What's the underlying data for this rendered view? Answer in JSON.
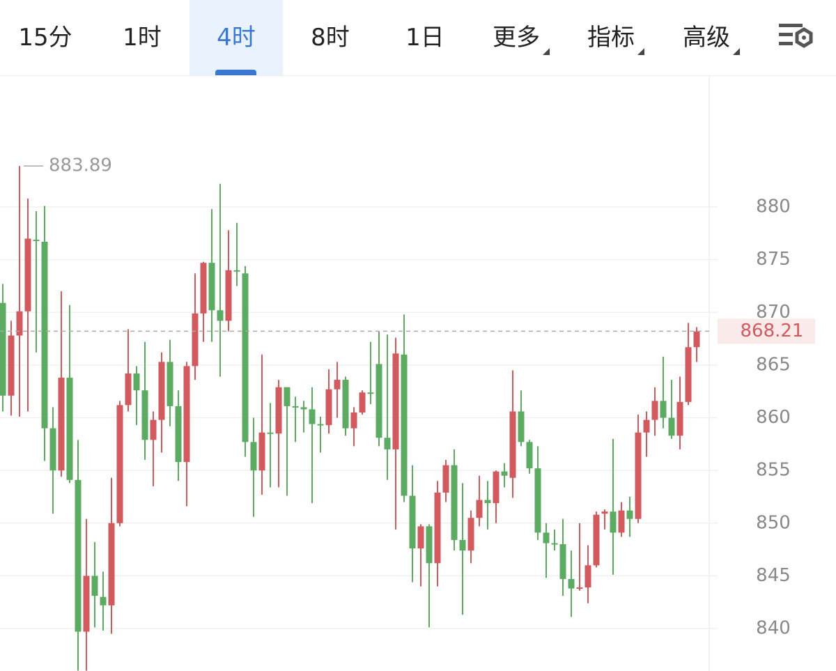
{
  "tabs": [
    "15分",
    "1时",
    "4时",
    "8时",
    "1日",
    "更多",
    "指标",
    "高级"
  ],
  "active_tab": 2,
  "dropdown_tabs": [
    5,
    6,
    7
  ],
  "chart_data": {
    "type": "candlestick",
    "up_color": "#d05a5e",
    "down_color": "#5daa62",
    "ylim": [
      835.97,
      892.5
    ],
    "yticks": [
      840,
      845,
      850,
      855,
      860,
      865,
      870,
      875,
      880
    ],
    "grid": true,
    "max_annotation": 883.89,
    "last_price": 868.21,
    "open": [
      870.9,
      862.1,
      867.8,
      870.1,
      876.9,
      876.7,
      859.0,
      855.0,
      863.8,
      854.1,
      839.7,
      845.0,
      843.0,
      842.2,
      850.0,
      861.2,
      864.2,
      862.6,
      857.9,
      859.8,
      865.3,
      861.1,
      855.8,
      864.9,
      869.9,
      874.7,
      870.2,
      869.2,
      874.0,
      873.7,
      857.7,
      855.0,
      858.6,
      858.5,
      862.9,
      861.1,
      861.0,
      860.8,
      859.4,
      859.3,
      862.7,
      863.6,
      859.0,
      860.5,
      862.4,
      865.1,
      858.1,
      857.0,
      866.0,
      852.6,
      847.6,
      849.7,
      846.2,
      852.9,
      855.5,
      848.4,
      847.4,
      850.5,
      852.2,
      851.9,
      854.9,
      854.3,
      860.6,
      857.7,
      855.2,
      849.1,
      848.1,
      848.0,
      844.7,
      843.8,
      843.9,
      846.0,
      850.9,
      851.1,
      849.1,
      851.2,
      850.4,
      858.6,
      859.8,
      861.6,
      860.0,
      858.3,
      861.5,
      866.7
    ],
    "high": [
      872.7,
      869.2,
      883.89,
      880.8,
      879.6,
      880.1,
      861.0,
      872.0,
      870.7,
      857.9,
      850.4,
      848.2,
      845.4,
      854.3,
      861.6,
      868.4,
      864.9,
      867.2,
      860.6,
      866.2,
      867.4,
      862.6,
      865.3,
      873.7,
      874.8,
      879.8,
      882.2,
      877.8,
      878.5,
      874.4,
      860.0,
      866.0,
      861.4,
      863.6,
      862.9,
      862.0,
      861.6,
      862.9,
      860.1,
      864.6,
      865.3,
      863.9,
      861.0,
      862.6,
      867.2,
      868.2,
      867.9,
      867.6,
      869.8,
      855.5,
      849.9,
      849.9,
      854.0,
      856.0,
      857.0,
      853.8,
      851.2,
      854.5,
      854.0,
      855.0,
      855.7,
      864.5,
      862.6,
      857.9,
      857.3,
      850.0,
      849.4,
      850.4,
      847.4,
      850.0,
      847.9,
      851.1,
      851.3,
      858.0,
      852.0,
      852.5,
      860.3,
      860.6,
      862.9,
      865.8,
      863.6,
      863.9,
      869.0,
      868.6
    ],
    "low": [
      860.6,
      860.2,
      860.1,
      860.6,
      866.2,
      855.9,
      850.9,
      854.4,
      853.8,
      836.0,
      836.0,
      840.1,
      839.8,
      839.5,
      849.7,
      860.6,
      859.3,
      856.0,
      853.5,
      856.7,
      859.2,
      854.0,
      851.6,
      863.6,
      867.2,
      867.2,
      863.9,
      868.2,
      872.5,
      856.3,
      850.6,
      852.7,
      853.4,
      853.4,
      852.6,
      857.7,
      858.6,
      851.9,
      856.7,
      858.5,
      860.0,
      858.3,
      857.3,
      860.3,
      861.3,
      857.3,
      854.1,
      849.4,
      852.0,
      844.4,
      844.0,
      840.1,
      844.0,
      852.0,
      847.4,
      841.3,
      846.2,
      849.7,
      849.4,
      850.0,
      853.4,
      852.4,
      857.3,
      854.7,
      848.4,
      844.8,
      847.4,
      843.1,
      841.1,
      843.6,
      842.4,
      845.8,
      849.4,
      845.1,
      848.7,
      848.7,
      850.0,
      856.3,
      858.3,
      859.0,
      858.0,
      857.0,
      861.2,
      865.3
    ],
    "close": [
      862.1,
      867.8,
      870.1,
      877.0,
      876.8,
      859.0,
      855.0,
      863.8,
      854.1,
      839.7,
      845.0,
      843.1,
      842.2,
      850.0,
      861.2,
      864.2,
      862.6,
      857.9,
      859.8,
      865.3,
      861.1,
      855.8,
      864.9,
      869.9,
      874.7,
      870.2,
      869.2,
      874.0,
      873.9,
      857.7,
      855.0,
      858.6,
      858.5,
      862.9,
      861.1,
      861.0,
      860.8,
      859.4,
      859.3,
      862.7,
      863.6,
      859.0,
      860.5,
      862.4,
      862.3,
      858.1,
      857.0,
      866.1,
      852.6,
      847.6,
      849.7,
      846.2,
      852.9,
      855.5,
      848.4,
      847.4,
      850.5,
      852.2,
      851.9,
      854.9,
      854.5,
      860.6,
      857.7,
      855.2,
      849.1,
      848.1,
      848.0,
      844.7,
      843.8,
      843.9,
      846.0,
      850.8,
      851.1,
      849.1,
      851.2,
      850.4,
      858.6,
      859.8,
      861.6,
      860.0,
      858.3,
      861.5,
      866.7,
      868.2
    ]
  }
}
